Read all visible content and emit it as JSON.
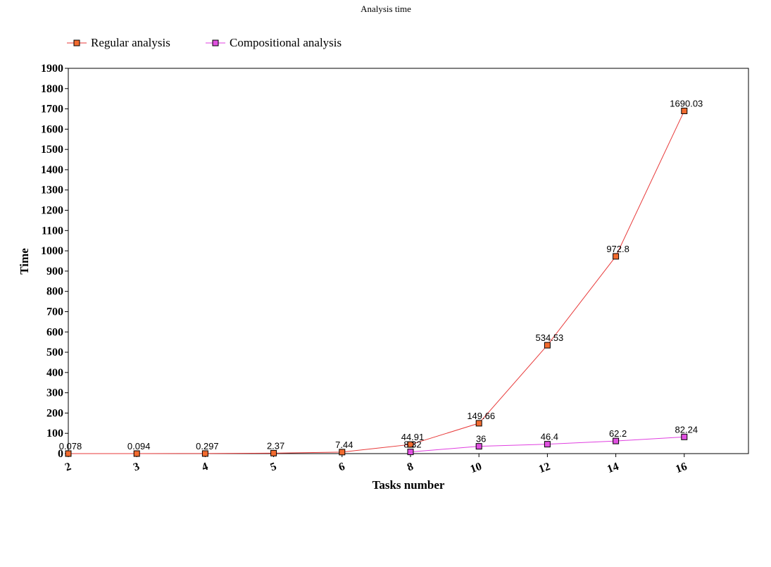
{
  "chart_data": {
    "type": "line",
    "title": "Analysis time",
    "xlabel": "Tasks number",
    "ylabel": "Time",
    "categories": [
      "2",
      "3",
      "4",
      "5",
      "6",
      "8",
      "10",
      "12",
      "14",
      "16"
    ],
    "ylim": [
      0,
      1900
    ],
    "yticks": [
      0,
      100,
      200,
      300,
      400,
      500,
      600,
      700,
      800,
      900,
      1000,
      1100,
      1200,
      1300,
      1400,
      1500,
      1600,
      1700,
      1800,
      1900
    ],
    "grid": false,
    "legend_position": "top-left",
    "series": [
      {
        "name": "Regular analysis",
        "color": "#e83a3a",
        "marker_color": "#f26b2f",
        "values": [
          0.078,
          0.094,
          0.297,
          2.37,
          7.44,
          44.91,
          149.66,
          534.53,
          972.8,
          1690.03
        ],
        "labels": [
          "0.078",
          "0.094",
          "0.297",
          "2.37",
          "7.44",
          "44.91",
          "149.66",
          "534.53",
          "972.8",
          "1690.03"
        ]
      },
      {
        "name": "Compositional analysis",
        "color": "#e040e0",
        "marker_color": "#e050e0",
        "values": [
          null,
          null,
          null,
          null,
          null,
          8.32,
          36,
          46.4,
          62.2,
          82.24
        ],
        "labels": [
          "",
          "",
          "",
          "",
          "",
          "8.32",
          "36",
          "46.4",
          "62.2",
          "82.24"
        ]
      }
    ]
  }
}
